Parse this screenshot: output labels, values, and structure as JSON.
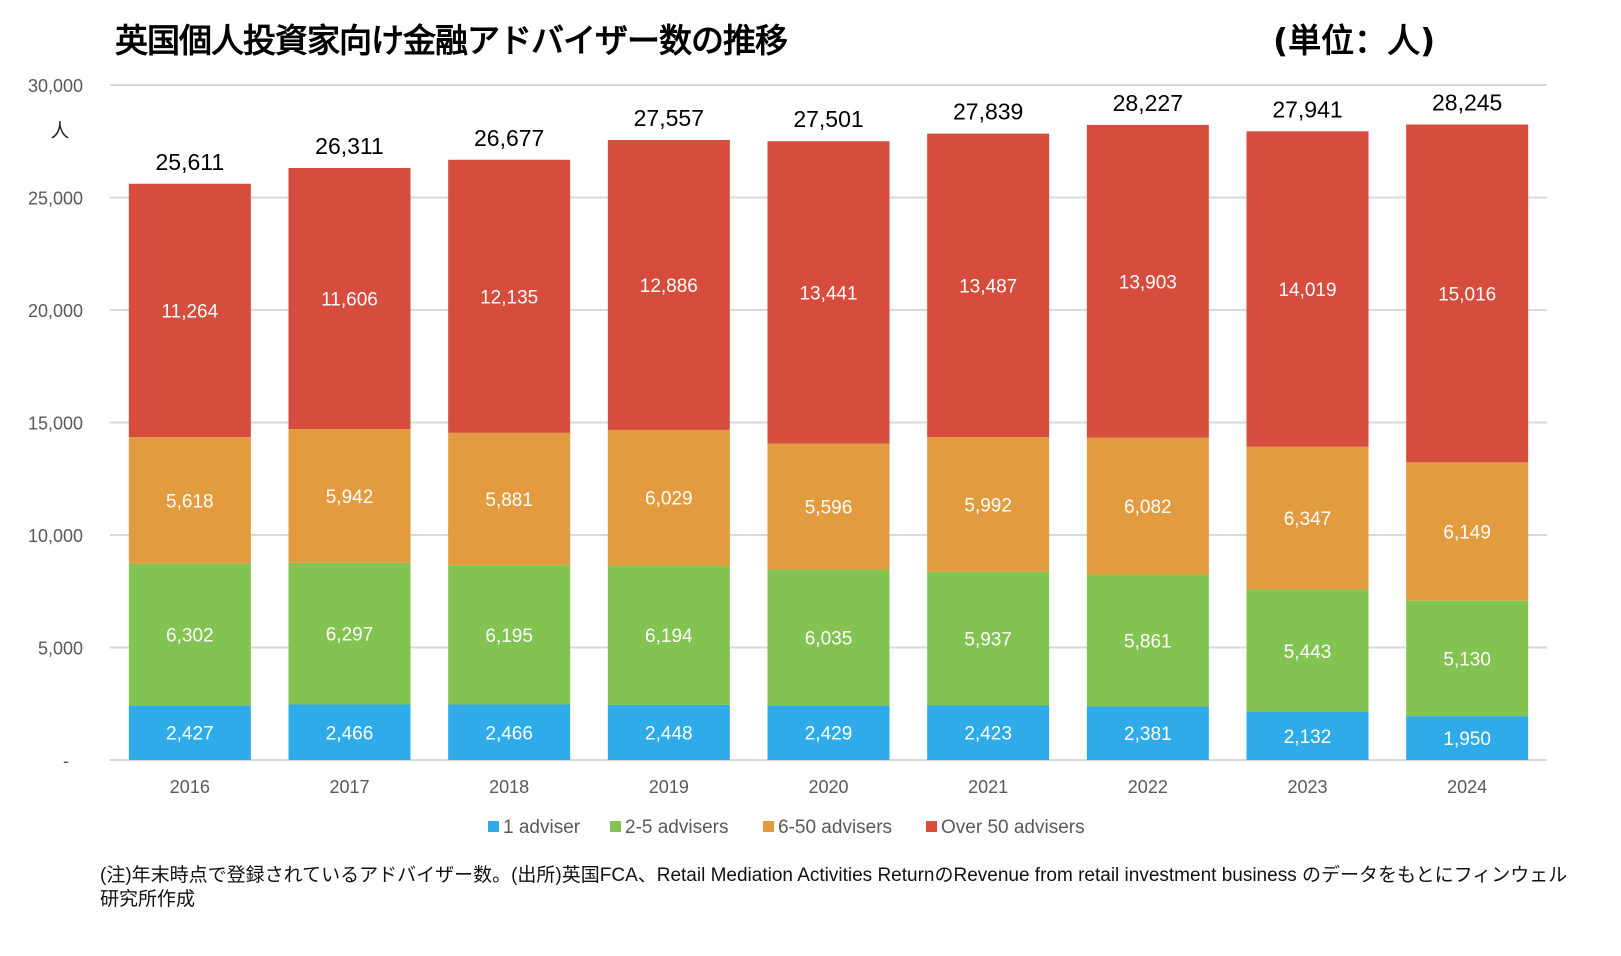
{
  "chart_data": {
    "type": "bar",
    "stacked": true,
    "title": "英国個人投資家向け金融アドバイザー数の推移",
    "unit_label": "(単位：人)",
    "ylabel": "人",
    "xlabel": "",
    "ylim": [
      0,
      30000
    ],
    "yticks": [
      0,
      5000,
      10000,
      15000,
      20000,
      25000,
      30000
    ],
    "ytick_labels": [
      "-",
      "5,000",
      "10,000",
      "15,000",
      "20,000",
      "25,000",
      "30,000"
    ],
    "grid": true,
    "legend_position": "bottom",
    "categories": [
      "2016",
      "2017",
      "2018",
      "2019",
      "2020",
      "2021",
      "2022",
      "2023",
      "2024"
    ],
    "series": [
      {
        "name": "1 adviser",
        "color": "#30abe9",
        "values": [
          2427,
          2466,
          2466,
          2448,
          2429,
          2423,
          2381,
          2132,
          1950
        ],
        "labels": [
          "2,427",
          "2,466",
          "2,466",
          "2,448",
          "2,429",
          "2,423",
          "2,381",
          "2,132",
          "1,950"
        ]
      },
      {
        "name": "2-5 advisers",
        "color": "#82c351",
        "values": [
          6302,
          6297,
          6195,
          6194,
          6035,
          5937,
          5861,
          5443,
          5130
        ],
        "labels": [
          "6,302",
          "6,297",
          "6,195",
          "6,194",
          "6,035",
          "5,937",
          "5,861",
          "5,443",
          "5,130"
        ]
      },
      {
        "name": "6-50 advisers",
        "color": "#e29c3f",
        "values": [
          5618,
          5942,
          5881,
          6029,
          5596,
          5992,
          6082,
          6347,
          6149
        ],
        "labels": [
          "5,618",
          "5,942",
          "5,881",
          "6,029",
          "5,596",
          "5,992",
          "6,082",
          "6,347",
          "6,149"
        ]
      },
      {
        "name": "Over 50 advisers",
        "color": "#d64c3d",
        "values": [
          11264,
          11606,
          12135,
          12886,
          13441,
          13487,
          13903,
          14019,
          15016
        ],
        "labels": [
          "11,264",
          "11,606",
          "12,135",
          "12,886",
          "13,441",
          "13,487",
          "13,903",
          "14,019",
          "15,016"
        ]
      }
    ],
    "totals": [
      25611,
      26311,
      26677,
      27557,
      27501,
      27839,
      28227,
      27941,
      28245
    ],
    "total_labels": [
      "25,611",
      "26,311",
      "26,677",
      "27,557",
      "27,501",
      "27,839",
      "28,227",
      "27,941",
      "28,245"
    ]
  },
  "note": "(注)年末時点で登録されているアドバイザー数。(出所)英国FCA、Retail Mediation Activities ReturnのRevenue from retail investment business のデータをもとにフィンウェル研究所作成"
}
